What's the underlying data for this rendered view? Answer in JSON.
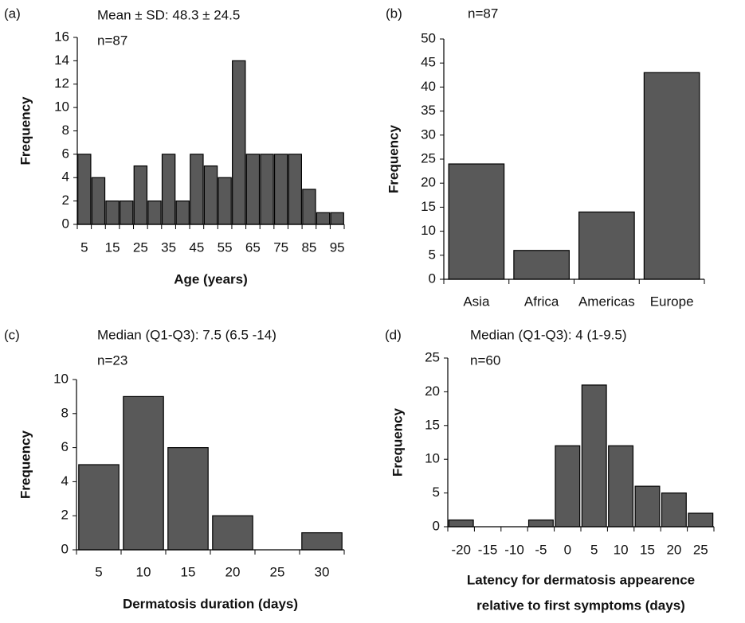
{
  "chart_data": [
    {
      "type": "bar",
      "label": "(a)",
      "annotations": [
        "Mean ± SD: 48.3 ± 24.5",
        "n=87"
      ],
      "xlabel": [
        "Age (years)"
      ],
      "ylabel": "Frequency",
      "categories": [
        "5",
        null,
        "15",
        null,
        "25",
        null,
        "35",
        null,
        "45",
        null,
        "55",
        null,
        "65",
        null,
        "75",
        null,
        "85",
        null,
        "95"
      ],
      "values": [
        6,
        4,
        2,
        2,
        5,
        2,
        6,
        2,
        6,
        5,
        4,
        14,
        6,
        6,
        6,
        6,
        3,
        1,
        1
      ],
      "color": "#595959",
      "ylim": [
        0,
        16
      ],
      "yticks": [
        0,
        2,
        4,
        6,
        8,
        10,
        12,
        14,
        16
      ]
    },
    {
      "type": "bar",
      "label": "(b)",
      "annotations": [
        "n=87"
      ],
      "ylabel": "Frequency",
      "categories": [
        "Asia",
        "Africa",
        "Americas",
        "Europe"
      ],
      "values": [
        24,
        6,
        14,
        43
      ],
      "color": "#595959",
      "ylim": [
        0,
        50
      ],
      "yticks": [
        0,
        5,
        10,
        15,
        20,
        25,
        30,
        35,
        40,
        45,
        50
      ]
    },
    {
      "type": "bar",
      "label": "(c)",
      "annotations": [
        "Median (Q1-Q3): 7.5 (6.5 -14)",
        "n=23"
      ],
      "xlabel": [
        "Dermatosis duration (days)"
      ],
      "ylabel": "Frequency",
      "categories": [
        "5",
        "10",
        "15",
        "20",
        "25",
        "30"
      ],
      "values": [
        5,
        9,
        6,
        2,
        0,
        1
      ],
      "color": "#595959",
      "ylim": [
        0,
        10
      ],
      "yticks": [
        0,
        2,
        4,
        6,
        8,
        10
      ]
    },
    {
      "type": "bar",
      "label": "(d)",
      "annotations": [
        "Median (Q1-Q3): 4 (1-9.5)",
        "n=60"
      ],
      "xlabel": [
        "Latency for dermatosis appearence",
        "relative to first symptoms (days)"
      ],
      "ylabel": "Frequency",
      "categories": [
        "-20",
        "-15",
        "-10",
        "-5",
        "0",
        "5",
        "10",
        "15",
        "20",
        "25"
      ],
      "values": [
        1,
        0,
        0,
        1,
        12,
        21,
        12,
        6,
        5,
        2
      ],
      "color": "#595959",
      "ylim": [
        0,
        25
      ],
      "yticks": [
        0,
        5,
        10,
        15,
        20,
        25
      ]
    }
  ]
}
